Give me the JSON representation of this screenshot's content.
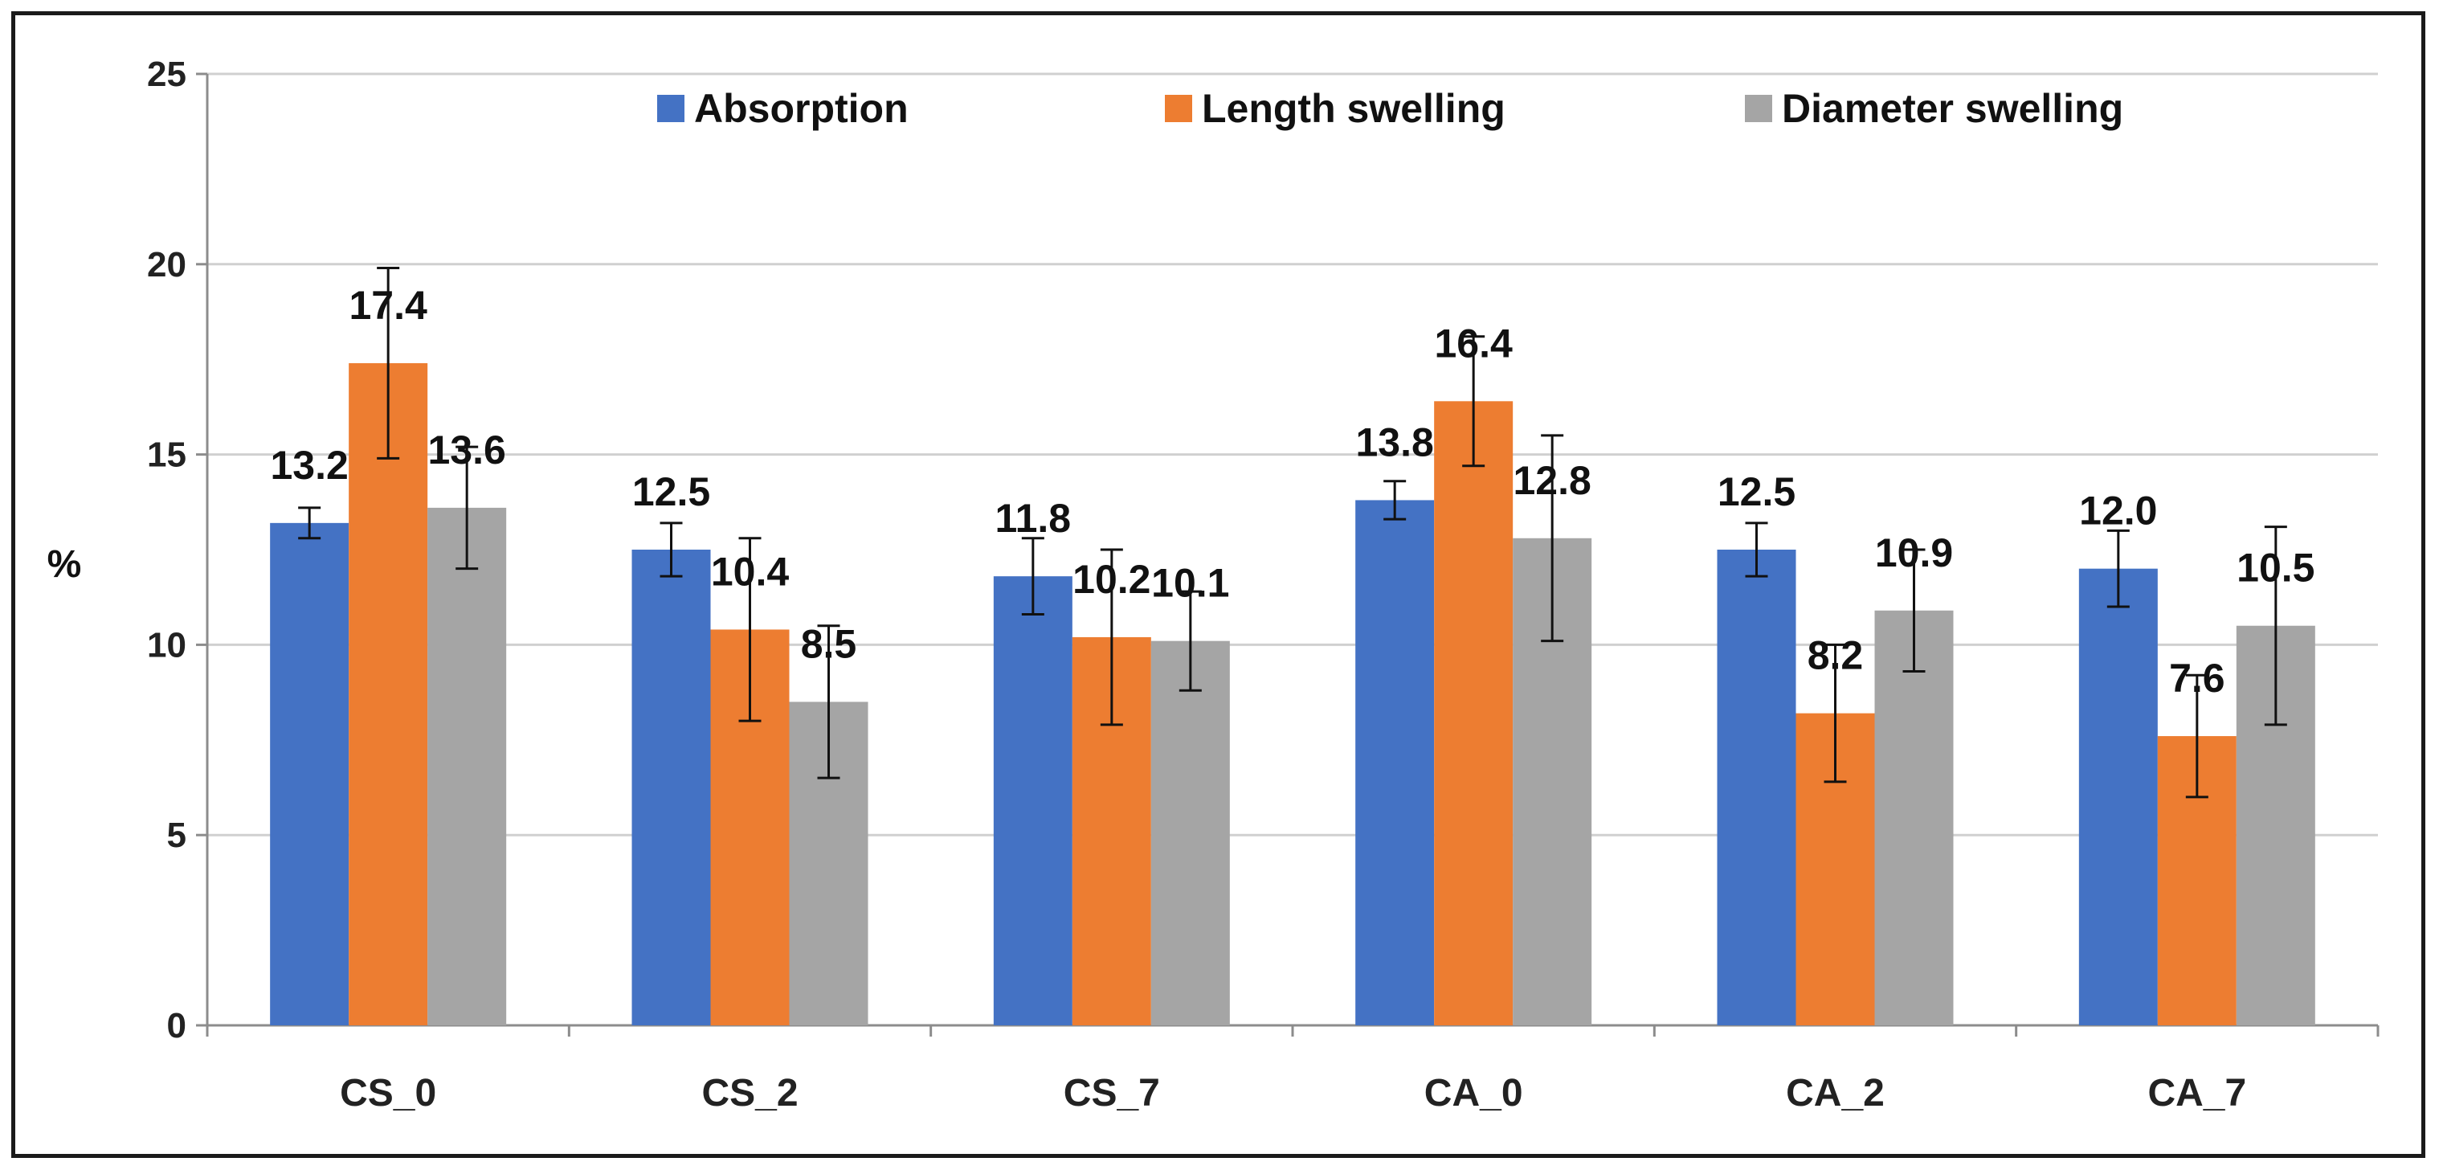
{
  "chart_data": {
    "type": "bar",
    "categories": [
      "CS_0",
      "CS_2",
      "CS_7",
      "CA_0",
      "CA_2",
      "CA_7"
    ],
    "series": [
      {
        "name": "Absorption",
        "color": "#4472C4",
        "values": [
          13.2,
          12.5,
          11.8,
          13.8,
          12.5,
          12.0
        ],
        "errors": [
          0.4,
          0.7,
          1.0,
          0.5,
          0.7,
          1.0
        ]
      },
      {
        "name": "Length swelling",
        "color": "#ED7D31",
        "values": [
          17.4,
          10.4,
          10.2,
          16.4,
          8.2,
          7.6
        ],
        "errors": [
          2.5,
          2.4,
          2.3,
          1.7,
          1.8,
          1.6
        ]
      },
      {
        "name": "Diameter swelling",
        "color": "#A5A5A5",
        "values": [
          13.6,
          8.5,
          10.1,
          12.8,
          10.9,
          10.5
        ],
        "errors": [
          1.6,
          2.0,
          1.3,
          2.7,
          1.6,
          2.6
        ]
      }
    ],
    "data_labels": [
      [
        "13.2",
        "12.5",
        "11.8",
        "13.8",
        "12.5",
        "12.0"
      ],
      [
        "17.4",
        "10.4",
        "10.2",
        "16.4",
        "8.2",
        "7.6"
      ],
      [
        "13.6",
        "8.5",
        "10.1",
        "12.8",
        "10.9",
        "10.5"
      ]
    ],
    "title": "",
    "xlabel": "",
    "ylabel": "%",
    "ylim": [
      0,
      25
    ],
    "yticks": [
      "0",
      "5",
      "10",
      "15",
      "20",
      "25"
    ],
    "grid": true,
    "legend_position": "top"
  }
}
